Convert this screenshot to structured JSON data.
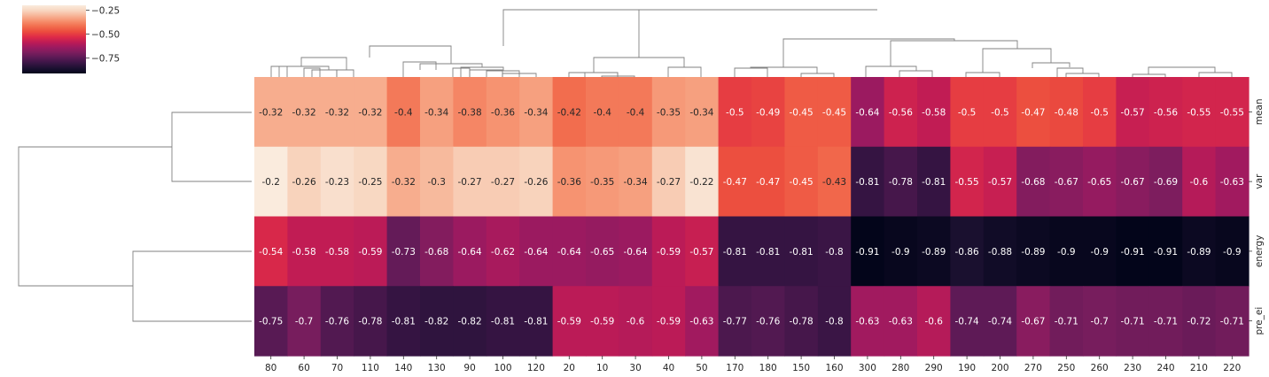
{
  "chart_data": {
    "type": "heatmap",
    "title": "",
    "xlabel": "",
    "ylabel": "",
    "columns": [
      "80",
      "60",
      "70",
      "110",
      "140",
      "130",
      "90",
      "100",
      "120",
      "20",
      "10",
      "30",
      "40",
      "50",
      "170",
      "180",
      "150",
      "160",
      "300",
      "280",
      "290",
      "190",
      "200",
      "270",
      "250",
      "260",
      "230",
      "240",
      "210",
      "220"
    ],
    "rows": [
      "mean",
      "var",
      "energy",
      "pre_ei"
    ],
    "values": [
      [
        -0.32,
        -0.32,
        -0.32,
        -0.32,
        -0.4,
        -0.34,
        -0.38,
        -0.36,
        -0.34,
        -0.42,
        -0.4,
        -0.4,
        -0.35,
        -0.34,
        -0.5,
        -0.49,
        -0.45,
        -0.45,
        -0.64,
        -0.56,
        -0.58,
        -0.5,
        -0.5,
        -0.47,
        -0.48,
        -0.5,
        -0.57,
        -0.56,
        -0.55,
        -0.55
      ],
      [
        -0.2,
        -0.26,
        -0.23,
        -0.25,
        -0.32,
        -0.3,
        -0.27,
        -0.27,
        -0.26,
        -0.36,
        -0.35,
        -0.34,
        -0.27,
        -0.22,
        -0.47,
        -0.47,
        -0.45,
        -0.43,
        -0.81,
        -0.78,
        -0.81,
        -0.55,
        -0.57,
        -0.68,
        -0.67,
        -0.65,
        -0.67,
        -0.69,
        -0.6,
        -0.63
      ],
      [
        -0.54,
        -0.58,
        -0.58,
        -0.59,
        -0.73,
        -0.68,
        -0.64,
        -0.62,
        -0.64,
        -0.64,
        -0.65,
        -0.64,
        -0.59,
        -0.57,
        -0.81,
        -0.81,
        -0.81,
        -0.8,
        -0.91,
        -0.9,
        -0.89,
        -0.86,
        -0.88,
        -0.89,
        -0.9,
        -0.9,
        -0.91,
        -0.91,
        -0.89,
        -0.9
      ],
      [
        -0.75,
        -0.7,
        -0.76,
        -0.78,
        -0.81,
        -0.82,
        -0.82,
        -0.81,
        -0.81,
        -0.59,
        -0.59,
        -0.6,
        -0.59,
        -0.63,
        -0.77,
        -0.76,
        -0.78,
        -0.8,
        -0.63,
        -0.63,
        -0.6,
        -0.74,
        -0.74,
        -0.67,
        -0.71,
        -0.7,
        -0.71,
        -0.71,
        -0.72,
        -0.71
      ]
    ],
    "color_range": [
      -0.91,
      -0.2
    ],
    "colorbar_ticks": [
      {
        "value": -0.25,
        "label": "−0.25"
      },
      {
        "value": -0.5,
        "label": "−0.50"
      },
      {
        "value": -0.75,
        "label": "−0.75"
      }
    ],
    "colormap": "rocket",
    "colormap_stops": [
      "#03051a",
      "#1c1131",
      "#3a1545",
      "#5a1a55",
      "#7c1d5e",
      "#9d1a60",
      "#c01b55",
      "#df2c47",
      "#ec4d3e",
      "#f26e4e",
      "#f6906e",
      "#f7b496",
      "#f8d6c0",
      "#faebdd"
    ],
    "column_dendrogram": true,
    "row_dendrogram": true
  }
}
